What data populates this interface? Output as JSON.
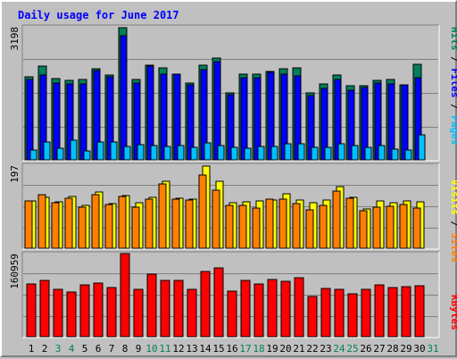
{
  "title": "Daily usage for June 2017",
  "legend": {
    "pages": "Pages",
    "files": "Files",
    "hits": "Hits",
    "sites": "Sites",
    "visits": "Visits",
    "kbytes": "KBytes",
    "slash": " / "
  },
  "colors": {
    "title": "#0000ff",
    "hits": "#00805c",
    "files": "#0000ff",
    "pages": "#00c0ff",
    "visits": "#ffff00",
    "sites": "#ff8000",
    "kbytes": "#ff0000",
    "weekday_label": "#000000",
    "weekend_label": "#00805c"
  },
  "chart_data": [
    {
      "type": "bar",
      "name": "hits-files-pages",
      "ymax_label": "3198",
      "ylim": [
        0,
        3198
      ],
      "x": [
        1,
        2,
        3,
        4,
        5,
        6,
        7,
        8,
        9,
        10,
        11,
        12,
        13,
        14,
        15,
        16,
        17,
        18,
        19,
        20,
        21,
        22,
        23,
        24,
        25,
        26,
        27,
        28,
        29,
        30,
        31
      ],
      "series": [
        {
          "name": "Hits",
          "values": [
            2020,
            2275,
            1960,
            1930,
            1955,
            2210,
            2045,
            3198,
            1945,
            2300,
            2215,
            2075,
            1850,
            2295,
            2465,
            1610,
            2065,
            2080,
            2140,
            2205,
            2220,
            1625,
            1835,
            2045,
            1795,
            1785,
            1920,
            1935,
            1825,
            2320,
            0
          ]
        },
        {
          "name": "Files",
          "values": [
            1940,
            2055,
            1860,
            1835,
            1845,
            2155,
            2000,
            3000,
            1850,
            2260,
            2075,
            2065,
            1810,
            2180,
            2385,
            1585,
            1990,
            1985,
            2120,
            2075,
            2035,
            1560,
            1725,
            1955,
            1695,
            1755,
            1850,
            1840,
            1820,
            1980,
            0
          ]
        },
        {
          "name": "Pages",
          "values": [
            245,
            440,
            285,
            475,
            225,
            440,
            435,
            325,
            370,
            335,
            320,
            345,
            310,
            400,
            340,
            310,
            285,
            315,
            320,
            390,
            390,
            305,
            295,
            395,
            350,
            295,
            340,
            255,
            245,
            600,
            0
          ]
        }
      ]
    },
    {
      "type": "bar",
      "name": "visits-sites",
      "ymax_label": "197",
      "ylim": [
        0,
        197
      ],
      "x": [
        1,
        2,
        3,
        4,
        5,
        6,
        7,
        8,
        9,
        10,
        11,
        12,
        13,
        14,
        15,
        16,
        17,
        18,
        19,
        20,
        21,
        22,
        23,
        24,
        25,
        26,
        27,
        28,
        29,
        30,
        31
      ],
      "series": [
        {
          "name": "Visits",
          "values": [
            113,
            122,
            111,
            125,
            103,
            135,
            106,
            127,
            109,
            121,
            161,
            119,
            117,
            197,
            161,
            110,
            111,
            114,
            116,
            131,
            116,
            109,
            115,
            147,
            121,
            94,
            114,
            109,
            113,
            111,
            0
          ]
        },
        {
          "name": "Sites",
          "values": [
            113,
            129,
            109,
            120,
            98,
            128,
            104,
            125,
            99,
            117,
            155,
            117,
            115,
            176,
            140,
            102,
            102,
            97,
            118,
            118,
            108,
            92,
            103,
            137,
            119,
            89,
            98,
            101,
            104,
            97,
            0
          ]
        }
      ]
    },
    {
      "type": "bar",
      "name": "kbytes",
      "ymax_label": "160959",
      "ylim": [
        0,
        160959
      ],
      "x": [
        1,
        2,
        3,
        4,
        5,
        6,
        7,
        8,
        9,
        10,
        11,
        12,
        13,
        14,
        15,
        16,
        17,
        18,
        19,
        20,
        21,
        22,
        23,
        24,
        25,
        26,
        27,
        28,
        29,
        30,
        31
      ],
      "series": [
        {
          "name": "KBytes",
          "values": [
            103500,
            110000,
            92500,
            87000,
            102000,
            105000,
            96500,
            162000,
            92500,
            122000,
            111000,
            110000,
            93500,
            128500,
            134000,
            90000,
            110000,
            103000,
            112000,
            108000,
            115000,
            79000,
            95000,
            92000,
            84000,
            93500,
            101000,
            95500,
            98000,
            99000,
            0
          ]
        }
      ]
    }
  ],
  "x_labels": [
    "1",
    "2",
    "3",
    "4",
    "5",
    "6",
    "7",
    "8",
    "9",
    "10",
    "11",
    "12",
    "13",
    "14",
    "15",
    "16",
    "17",
    "18",
    "19",
    "20",
    "21",
    "22",
    "23",
    "24",
    "25",
    "26",
    "27",
    "28",
    "29",
    "30",
    "31"
  ],
  "weekend_days": [
    3,
    4,
    10,
    11,
    17,
    18,
    24,
    25,
    31
  ]
}
